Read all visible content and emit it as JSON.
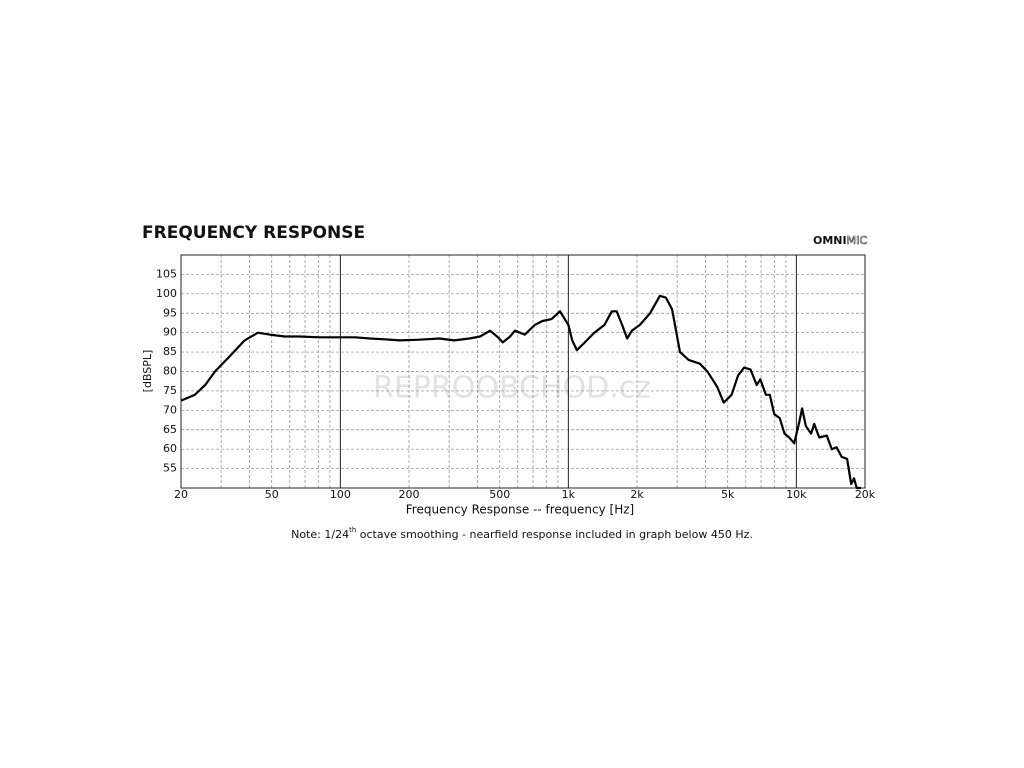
{
  "chart_data": {
    "type": "line",
    "title": "FREQUENCY RESPONSE",
    "logo_bold": "OMNI",
    "logo_light": "MIC",
    "watermark": "REPROOBCHOD.cz",
    "x_label": "Frequency Response -- frequency [Hz]",
    "y_label": "[dBSPL]",
    "note": [
      "Note: 1/24",
      "th",
      " octave smoothing - nearfield response included in graph below 450 Hz."
    ],
    "x_scale": "log",
    "grid": true,
    "xlim": [
      20,
      20000
    ],
    "ylim": [
      50,
      110
    ],
    "xticks": [
      20,
      50,
      100,
      200,
      500,
      {
        "value": 1000,
        "label": "1k"
      },
      {
        "value": 2000,
        "label": "2k"
      },
      {
        "value": 5000,
        "label": "5k"
      },
      {
        "value": 10000,
        "label": "10k"
      },
      {
        "value": 20000,
        "label": "20k"
      }
    ],
    "x_major_grid": [
      100,
      1000,
      10000
    ],
    "x_minor_grid": [
      30,
      40,
      60,
      70,
      80,
      90,
      300,
      400,
      600,
      700,
      800,
      900,
      3000,
      4000,
      6000,
      7000,
      8000,
      9000
    ],
    "yticks": [
      55,
      60,
      65,
      70,
      75,
      80,
      85,
      90,
      95,
      100,
      105
    ],
    "series": [
      {
        "color": "#000000",
        "x": [
          20,
          23,
          25.5,
          28.2,
          32.8,
          38,
          43.5,
          49,
          57,
          66,
          81,
          100,
          116,
          135,
          156,
          182,
          222,
          272,
          316,
          368,
          410,
          453,
          487,
          516,
          555,
          583,
          644,
          713,
          770,
          843,
          919,
          1000,
          1040,
          1090,
          1180,
          1300,
          1440,
          1550,
          1630,
          1720,
          1810,
          1900,
          2060,
          2280,
          2520,
          2680,
          2850,
          3088,
          3370,
          3770,
          4070,
          4500,
          4800,
          5200,
          5550,
          5900,
          6300,
          6700,
          6950,
          7350,
          7650,
          8000,
          8450,
          8870,
          9300,
          9780,
          10300,
          10600,
          11000,
          11600,
          11970,
          12600,
          13600,
          14300,
          15000,
          15800,
          16700,
          17400,
          17900,
          18400,
          19200
        ],
        "values": [
          72.5,
          74,
          76.5,
          80,
          84,
          88,
          90,
          89.5,
          89,
          89,
          88.8,
          88.8,
          88.8,
          88.5,
          88.3,
          88,
          88.2,
          88.5,
          88,
          88.5,
          89,
          90.5,
          89,
          87.5,
          89,
          90.5,
          89.5,
          92,
          93,
          93.5,
          95.5,
          92,
          88,
          85.5,
          87.5,
          90,
          92,
          95.5,
          95.5,
          92,
          88.5,
          90.5,
          92,
          95,
          99.5,
          99,
          96,
          85,
          83,
          82,
          80,
          76,
          72,
          74,
          79,
          81,
          80.5,
          76.5,
          78,
          74,
          74,
          69,
          68,
          64,
          63,
          61.5,
          67,
          70.5,
          66,
          64,
          66.5,
          63,
          63.5,
          60,
          60.5,
          58,
          57.5,
          51,
          52.5,
          50,
          50
        ]
      }
    ]
  }
}
